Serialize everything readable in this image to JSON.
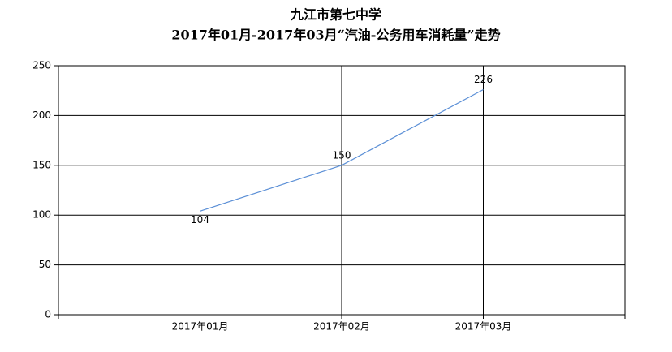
{
  "chart_data": {
    "type": "line",
    "title": "九江市第七中学",
    "subtitle": "2017年01月-2017年03月“汽油-公务用车消耗量”走势",
    "categories": [
      "2017年01月",
      "2017年02月",
      "2017年03月"
    ],
    "values": [
      104,
      150,
      226
    ],
    "color": "#5b8fd6",
    "ylim": [
      0,
      250
    ],
    "yticks": [
      0,
      50,
      100,
      150,
      200,
      250
    ],
    "grid": true
  }
}
